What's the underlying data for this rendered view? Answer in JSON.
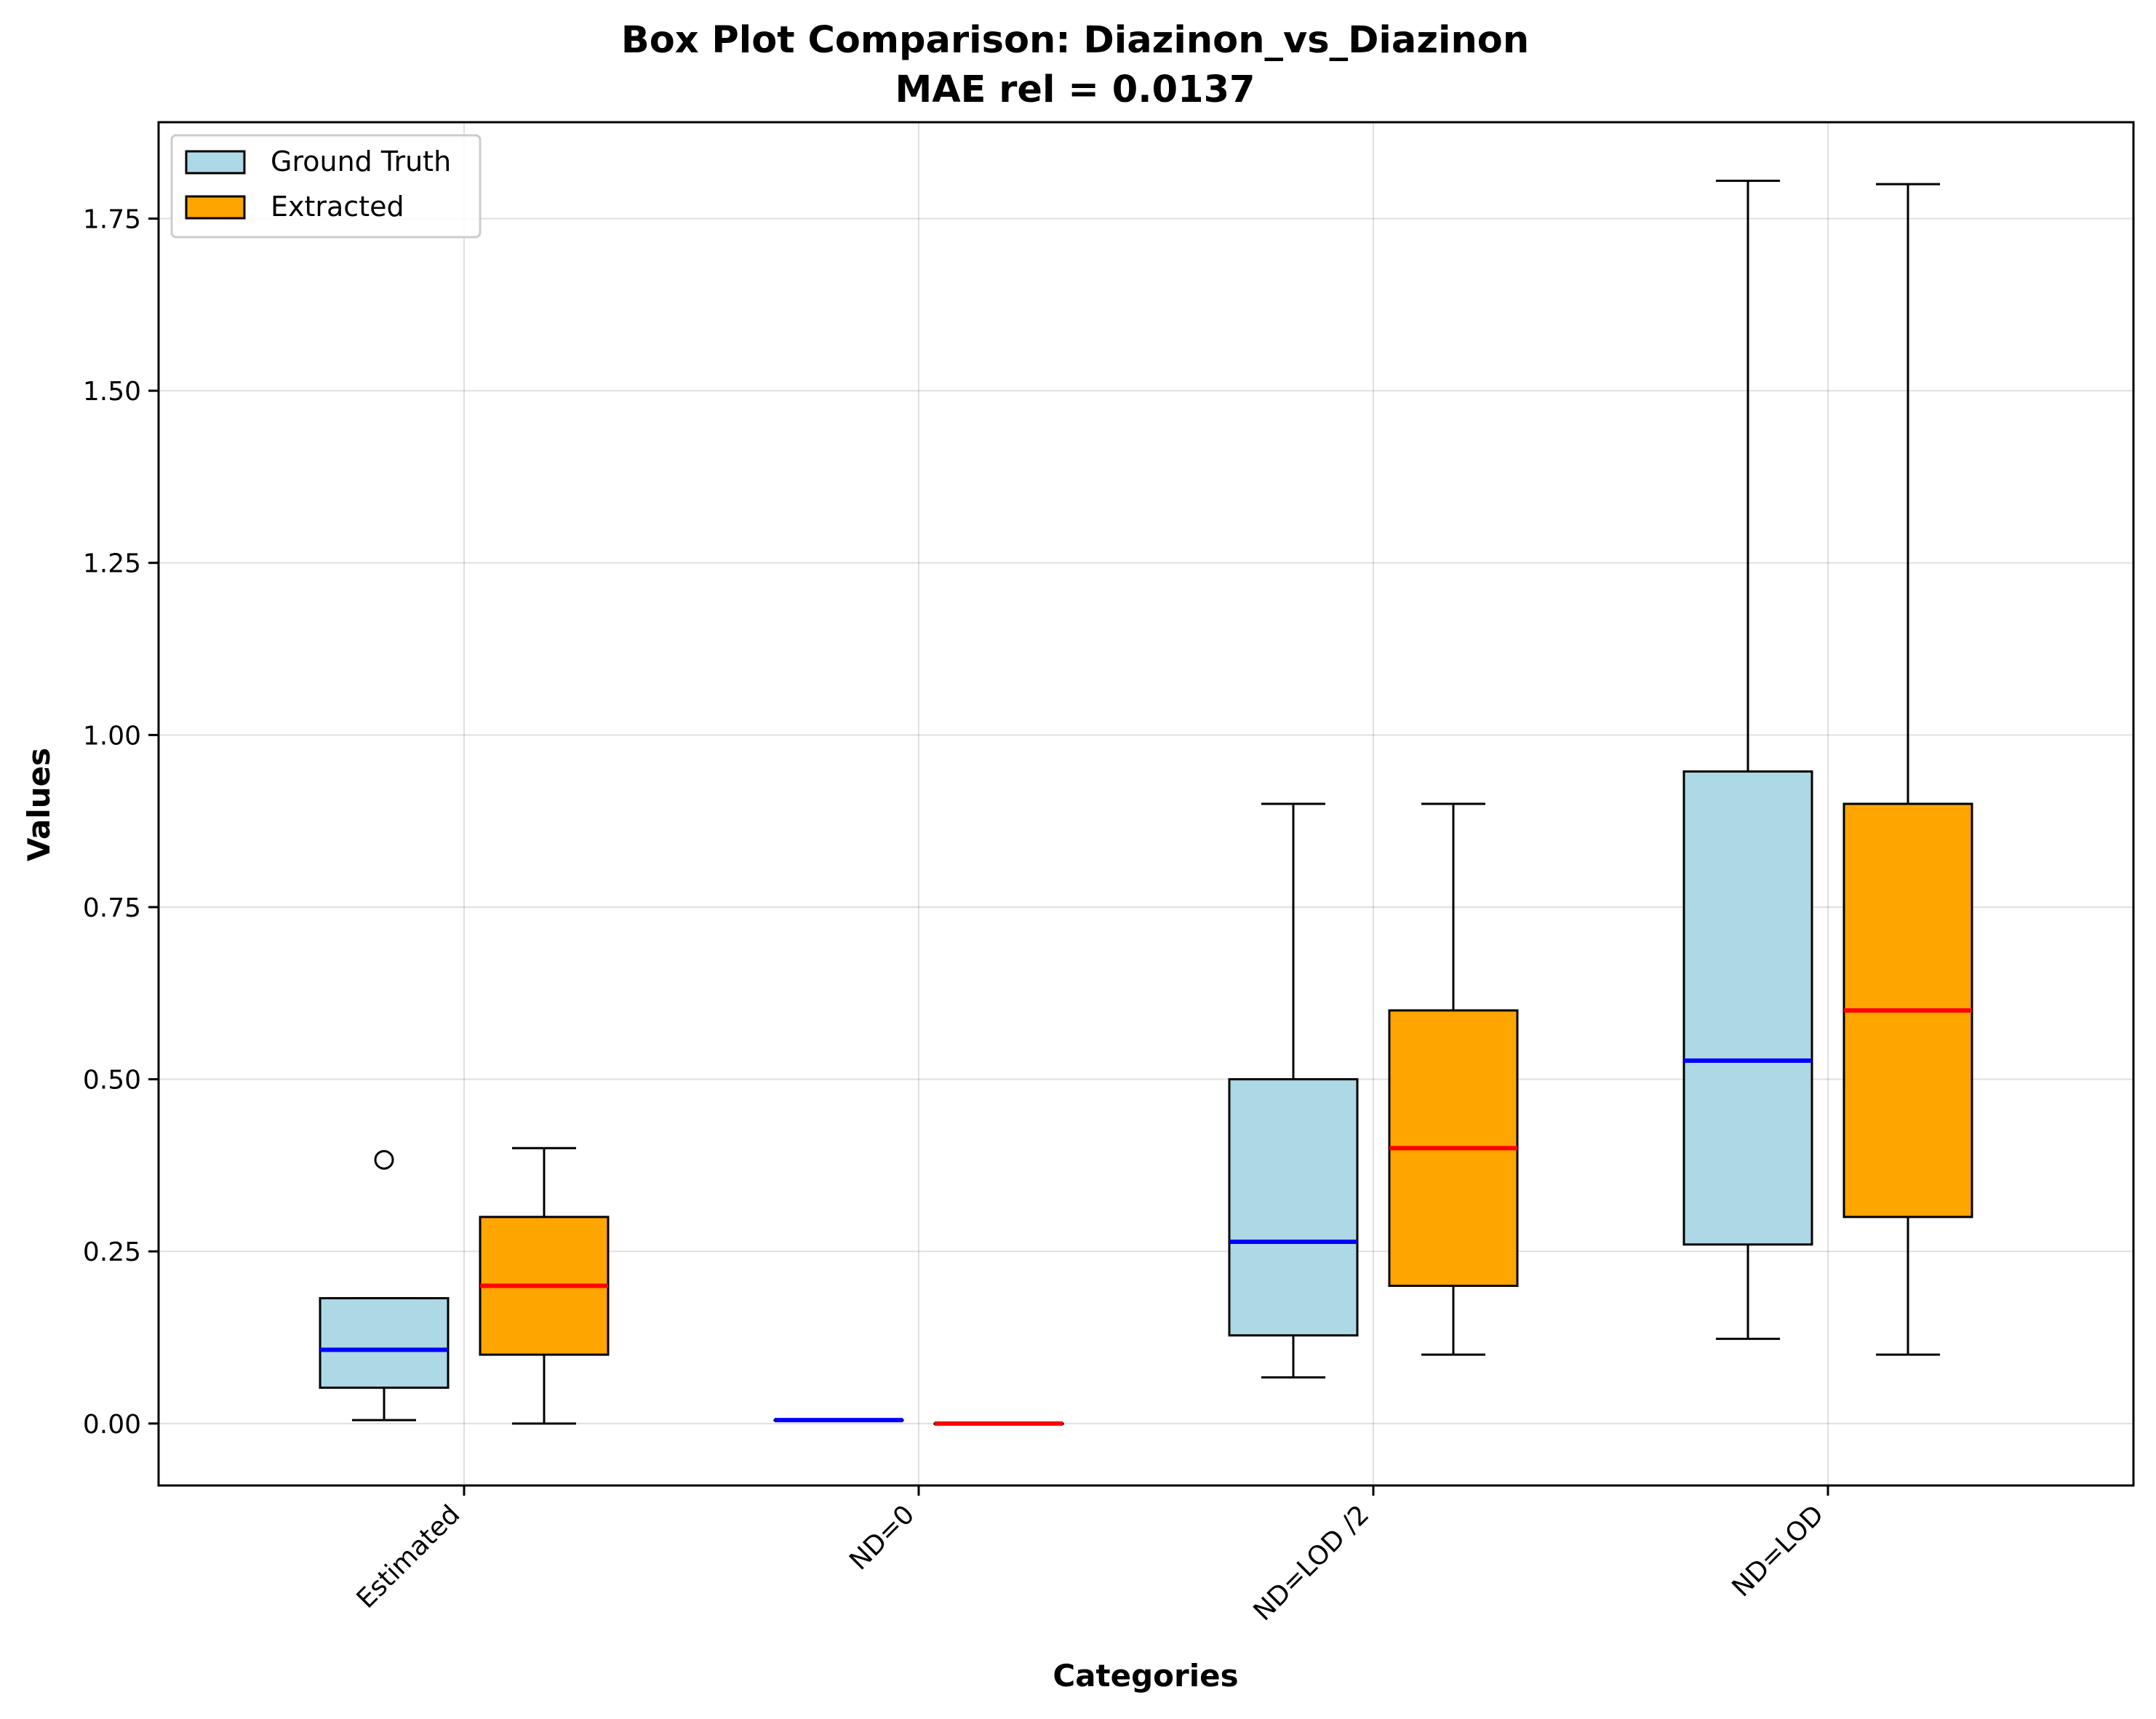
{
  "chart_data": {
    "type": "box",
    "title": "Box Plot Comparison: Diazinon_vs_Diazinon",
    "subtitle": "MAE rel = 0.0137",
    "xlabel": "Categories",
    "ylabel": "Values",
    "ylim": [
      -0.09,
      1.89
    ],
    "yticks": [
      0.0,
      0.25,
      0.5,
      0.75,
      1.0,
      1.25,
      1.5,
      1.75
    ],
    "ytick_labels": [
      "0.00",
      "0.25",
      "0.50",
      "0.75",
      "1.00",
      "1.25",
      "1.50",
      "1.75"
    ],
    "categories": [
      "Estimated",
      "ND=0",
      "ND=LOD /2",
      "ND=LOD"
    ],
    "grid": true,
    "legend_position": "top-left",
    "series": [
      {
        "name": "Ground Truth",
        "box_color": "#add8e6",
        "median_color": "#0000ff",
        "boxes": [
          {
            "whisker_low": 0.005,
            "q1": 0.052,
            "median": 0.107,
            "q3": 0.182,
            "whisker_high": 0.182,
            "outliers": [
              0.383
            ]
          },
          {
            "whisker_low": 0.005,
            "q1": 0.005,
            "median": 0.005,
            "q3": 0.005,
            "whisker_high": 0.005,
            "outliers": []
          },
          {
            "whisker_low": 0.067,
            "q1": 0.128,
            "median": 0.264,
            "q3": 0.5,
            "whisker_high": 0.9,
            "outliers": []
          },
          {
            "whisker_low": 0.123,
            "q1": 0.26,
            "median": 0.527,
            "q3": 0.947,
            "whisker_high": 1.805,
            "outliers": []
          }
        ]
      },
      {
        "name": "Extracted",
        "box_color": "#ffa500",
        "median_color": "#ff0000",
        "boxes": [
          {
            "whisker_low": 0.0,
            "q1": 0.1,
            "median": 0.2,
            "q3": 0.3,
            "whisker_high": 0.4,
            "outliers": []
          },
          {
            "whisker_low": 0.0,
            "q1": 0.0,
            "median": 0.0,
            "q3": 0.0,
            "whisker_high": 0.0,
            "outliers": []
          },
          {
            "whisker_low": 0.1,
            "q1": 0.2,
            "median": 0.4,
            "q3": 0.6,
            "whisker_high": 0.9,
            "outliers": []
          },
          {
            "whisker_low": 0.1,
            "q1": 0.3,
            "median": 0.6,
            "q3": 0.9,
            "whisker_high": 1.8,
            "outliers": []
          }
        ]
      }
    ]
  }
}
